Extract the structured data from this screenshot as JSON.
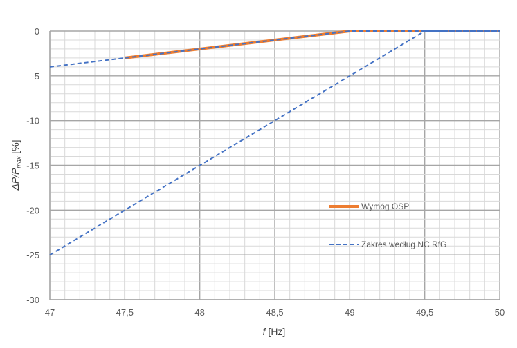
{
  "chart_data": {
    "type": "line",
    "xlabel": {
      "main": "f",
      "unit": " [Hz]"
    },
    "ylabel": {
      "main": "ΔP/P",
      "sub": "max",
      "unit": " [%]"
    },
    "xlim": [
      47,
      50
    ],
    "ylim": [
      -30,
      0
    ],
    "x_ticks": [
      "47",
      "47,5",
      "48",
      "48,5",
      "49",
      "49,5",
      "50"
    ],
    "y_ticks": [
      "0",
      "-5",
      "-10",
      "-15",
      "-20",
      "-25",
      "-30"
    ],
    "grid": true,
    "legend_position": "right",
    "series": [
      {
        "name": "Wymóg OSP",
        "style": "solid",
        "color": "#ED7D31",
        "points": [
          [
            47.5,
            -3
          ],
          [
            49,
            0
          ],
          [
            50,
            0
          ]
        ]
      },
      {
        "name": "Zakres według NC RfG",
        "style": "dashed",
        "color": "#4472C4",
        "points": [
          [
            47,
            -4
          ],
          [
            47.5,
            -3
          ],
          [
            49,
            0
          ],
          [
            50,
            0
          ]
        ]
      },
      {
        "name": "Zakres według NC RfG",
        "style": "dashed",
        "color": "#4472C4",
        "points": [
          [
            47,
            -25
          ],
          [
            49.5,
            0
          ],
          [
            50,
            0
          ]
        ]
      }
    ]
  }
}
